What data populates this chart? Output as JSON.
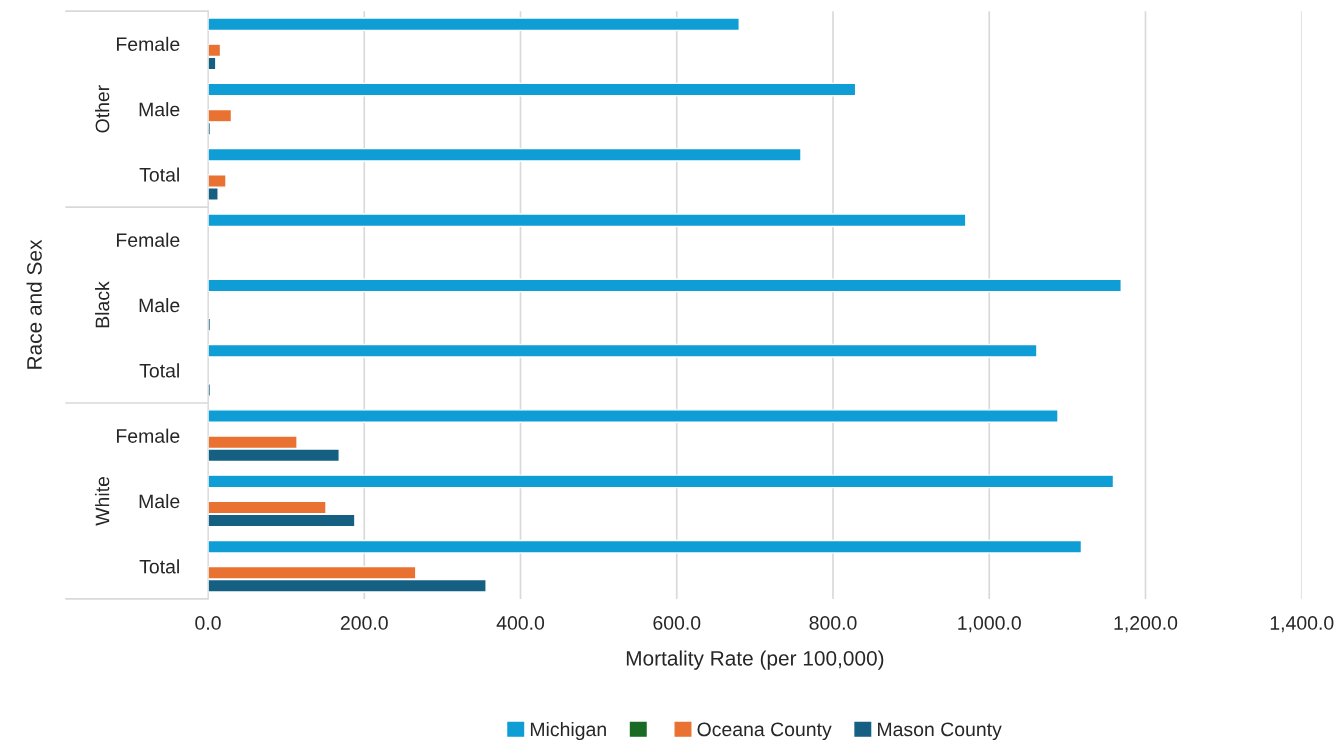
{
  "chart_data": {
    "type": "bar",
    "orientation": "horizontal",
    "categories": [
      "Female",
      "Male",
      "Total",
      "Female",
      "Male",
      "Total",
      "Female",
      "Male",
      "Total"
    ],
    "series": [
      {
        "name": "Michigan",
        "color": "#0e9ed5",
        "values": [
          680,
          829,
          759,
          970,
          1169,
          1061,
          1088,
          1159,
          1118
        ]
      },
      {
        "color": "#196b24",
        "values": [
          null,
          null,
          null,
          null,
          null,
          null,
          null,
          null,
          null
        ]
      },
      {
        "name": "Oceana County",
        "color": "#e97132",
        "values": [
          16,
          30,
          23,
          null,
          null,
          null,
          114,
          151,
          266
        ]
      },
      {
        "name": "Mason County",
        "color": "#156082",
        "values": [
          10,
          3,
          13,
          null,
          3,
          3,
          168,
          188,
          356
        ]
      }
    ],
    "annotations": [
      "Other",
      "Black",
      "White"
    ],
    "xlabel": "Mortality Rate (per 100,000)",
    "ylabel": "Race and Sex",
    "xlim": [
      0,
      1400
    ],
    "xticks": [
      {
        "value": 0,
        "label": "0.0"
      },
      {
        "value": 200,
        "label": "200.0"
      },
      {
        "value": 400,
        "label": "400.0"
      },
      {
        "value": 600,
        "label": "600.0"
      },
      {
        "value": 800,
        "label": "800.0"
      },
      {
        "value": 1000,
        "label": "1,000.0"
      },
      {
        "value": 1200,
        "label": "1,200.0"
      },
      {
        "value": 1400,
        "label": "1,400.0"
      }
    ],
    "grid": "x",
    "legend": "bottom"
  }
}
